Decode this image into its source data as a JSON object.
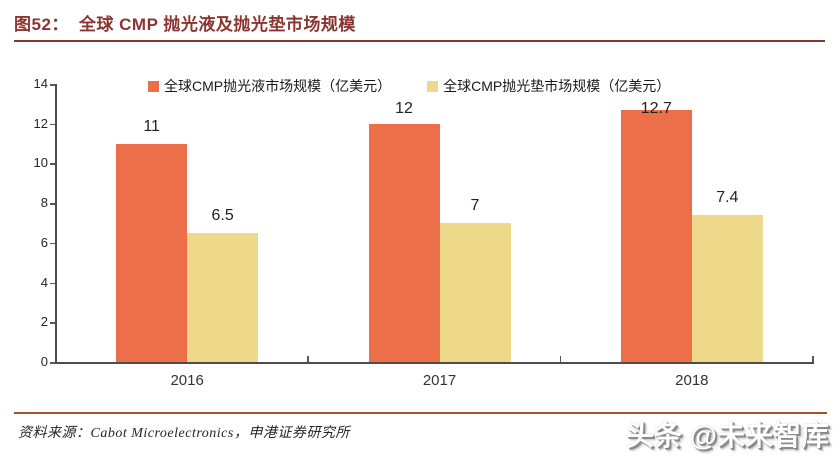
{
  "title": {
    "number": "图52：",
    "text": "全球 CMP 抛光液及抛光垫市场规模"
  },
  "chart_data": {
    "type": "bar",
    "title": "全球 CMP 抛光液及抛光垫市场规模",
    "categories": [
      "2016",
      "2017",
      "2018"
    ],
    "series": [
      {
        "name": "全球CMP抛光液市场规模（亿美元）",
        "color": "#EC6F49",
        "values": [
          11,
          12,
          12.7
        ],
        "labels": [
          "11",
          "12",
          "12.7"
        ]
      },
      {
        "name": "全球CMP抛光垫市场规模（亿美元）",
        "color": "#EED88A",
        "values": [
          6.5,
          7,
          7.4
        ],
        "labels": [
          "6.5",
          "7",
          "7.4"
        ]
      }
    ],
    "xlabel": "",
    "ylabel": "",
    "ylim": [
      0,
      14
    ],
    "yticks": [
      0,
      2,
      4,
      6,
      8,
      10,
      12,
      14
    ],
    "grid": false,
    "legend_position": "top"
  },
  "footer": {
    "source": "资料来源：Cabot Microelectronics，申港证券研究所",
    "watermark": "头条 @未来智库"
  },
  "colors": {
    "title_red": "#8B3531",
    "footer_line": "#A3512B",
    "bar_orange": "#EC6F49",
    "bar_yellow": "#EED88A",
    "axis_gray": "#4d4d4d"
  }
}
